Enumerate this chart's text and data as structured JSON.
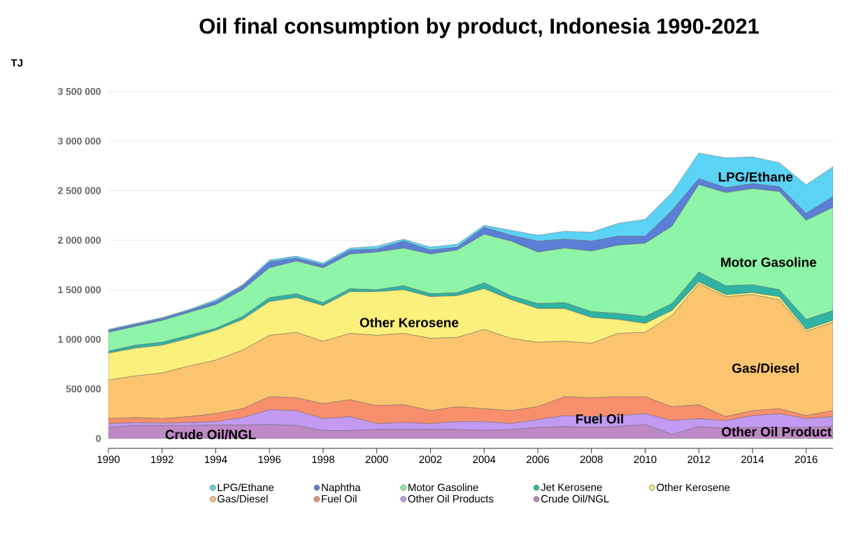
{
  "chart_data": {
    "type": "area",
    "stacked": true,
    "title": "Oil final consumption by product, Indonesia 1990-2021",
    "ylabel": "TJ",
    "x": [
      1990,
      1991,
      1992,
      1993,
      1994,
      1995,
      1996,
      1997,
      1998,
      1999,
      2000,
      2001,
      2002,
      2003,
      2004,
      2005,
      2006,
      2007,
      2008,
      2009,
      2010,
      2011,
      2012,
      2013,
      2014,
      2015,
      2016,
      2017
    ],
    "series": [
      {
        "name": "Crude Oil/NGL",
        "color": "#bf88c6",
        "values": [
          110000,
          130000,
          130000,
          130000,
          135000,
          135000,
          140000,
          130000,
          80000,
          80000,
          90000,
          90000,
          90000,
          90000,
          80000,
          90000,
          110000,
          120000,
          110000,
          120000,
          140000,
          40000,
          120000,
          100000,
          110000,
          110000,
          110000,
          120000
        ]
      },
      {
        "name": "Other Oil Products",
        "color": "#c29af2",
        "values": [
          40000,
          30000,
          25000,
          30000,
          35000,
          75000,
          150000,
          150000,
          120000,
          140000,
          60000,
          70000,
          60000,
          80000,
          90000,
          60000,
          80000,
          110000,
          110000,
          110000,
          110000,
          140000,
          80000,
          80000,
          120000,
          140000,
          90000,
          100000
        ]
      },
      {
        "name": "Fuel Oil",
        "color": "#f88f6c",
        "values": [
          50000,
          50000,
          45000,
          60000,
          80000,
          90000,
          130000,
          130000,
          150000,
          170000,
          180000,
          180000,
          130000,
          150000,
          130000,
          130000,
          130000,
          190000,
          190000,
          190000,
          170000,
          140000,
          140000,
          40000,
          50000,
          50000,
          30000,
          60000
        ]
      },
      {
        "name": "Gas/Diesel",
        "color": "#fbc46e",
        "values": [
          390000,
          420000,
          460000,
          510000,
          540000,
          590000,
          620000,
          660000,
          630000,
          670000,
          710000,
          720000,
          730000,
          700000,
          800000,
          730000,
          650000,
          560000,
          550000,
          640000,
          650000,
          920000,
          1220000,
          1210000,
          1170000,
          1100000,
          850000,
          890000
        ]
      },
      {
        "name": "Other Kerosene",
        "color": "#fbf07c",
        "values": [
          270000,
          280000,
          280000,
          280000,
          300000,
          310000,
          340000,
          350000,
          360000,
          420000,
          440000,
          440000,
          420000,
          420000,
          410000,
          390000,
          340000,
          330000,
          260000,
          140000,
          90000,
          50000,
          20000,
          20000,
          20000,
          30000,
          20000,
          20000
        ]
      },
      {
        "name": "Jet Kerosene",
        "color": "#2fb3a3",
        "values": [
          20000,
          30000,
          30000,
          30000,
          20000,
          30000,
          40000,
          40000,
          30000,
          30000,
          20000,
          40000,
          30000,
          30000,
          60000,
          40000,
          50000,
          60000,
          60000,
          60000,
          70000,
          70000,
          100000,
          90000,
          80000,
          70000,
          100000,
          100000
        ]
      },
      {
        "name": "Motor Gasoline",
        "color": "#8ef4a8",
        "values": [
          190000,
          190000,
          220000,
          230000,
          240000,
          270000,
          300000,
          330000,
          350000,
          350000,
          380000,
          380000,
          400000,
          430000,
          490000,
          550000,
          520000,
          550000,
          610000,
          690000,
          740000,
          780000,
          880000,
          940000,
          970000,
          990000,
          1000000,
          1040000
        ]
      },
      {
        "name": "Naphtha",
        "color": "#5b7fd6",
        "values": [
          20000,
          20000,
          20000,
          20000,
          30000,
          40000,
          60000,
          30000,
          30000,
          40000,
          30000,
          70000,
          40000,
          30000,
          70000,
          60000,
          110000,
          90000,
          100000,
          90000,
          70000,
          160000,
          60000,
          50000,
          50000,
          50000,
          70000,
          110000
        ]
      },
      {
        "name": "LPG/Ethane",
        "color": "#5bd3f5",
        "values": [
          10000,
          10000,
          10000,
          10000,
          20000,
          10000,
          20000,
          20000,
          20000,
          20000,
          30000,
          20000,
          30000,
          30000,
          20000,
          50000,
          60000,
          80000,
          90000,
          130000,
          170000,
          180000,
          260000,
          300000,
          270000,
          240000,
          290000,
          300000
        ]
      }
    ],
    "xlim": [
      1990,
      2017
    ],
    "ylim": [
      -100000,
      3500000
    ],
    "xticks": [
      1990,
      1992,
      1994,
      1996,
      1998,
      2000,
      2002,
      2004,
      2006,
      2008,
      2010,
      2012,
      2014,
      2016
    ],
    "yticks": [
      {
        "value": 0,
        "label": "0"
      },
      {
        "value": 500000,
        "label": "500 000"
      },
      {
        "value": 1000000,
        "label": "1 000 000"
      },
      {
        "value": 1500000,
        "label": "1 500 000"
      },
      {
        "value": 2000000,
        "label": "2 000 000"
      },
      {
        "value": 2500000,
        "label": "2 500 000"
      },
      {
        "value": 3000000,
        "label": "3 000 000"
      },
      {
        "value": 3500000,
        "label": "3 500 000"
      }
    ],
    "annotations": [
      "Crude Oil/NGL",
      "Other Kerosene",
      "Fuel Oil",
      "LPG/Ethane",
      "Motor Gasoline",
      "Gas/Diesel",
      "Other Oil Product"
    ],
    "grid": "y",
    "legend": "bottom"
  }
}
